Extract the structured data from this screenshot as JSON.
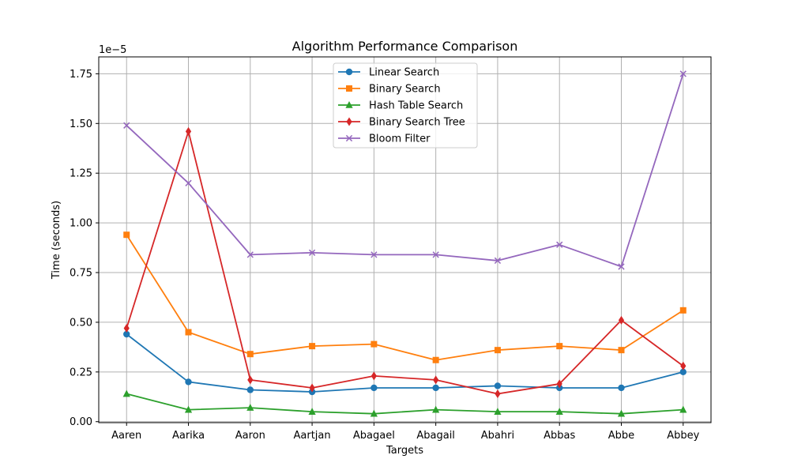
{
  "chart_data": {
    "type": "line",
    "title": "Algorithm Performance Comparison",
    "xlabel": "Targets",
    "ylabel": "Time (seconds)",
    "y_offset_text": "1e−5",
    "categories": [
      "Aaren",
      "Aarika",
      "Aaron",
      "Aartjan",
      "Abagael",
      "Abagail",
      "Abahri",
      "Abbas",
      "Abbe",
      "Abbey"
    ],
    "y_ticks": [
      "0.00",
      "0.25",
      "0.50",
      "0.75",
      "1.00",
      "1.25",
      "1.50",
      "1.75"
    ],
    "ylim": [
      -5e-08,
      1.835e-05
    ],
    "grid": true,
    "legend_position": "top-center",
    "series": [
      {
        "name": "Linear Search",
        "color": "#1f77b4",
        "marker": "circle",
        "values": [
          4.4e-06,
          2e-06,
          1.6e-06,
          1.5e-06,
          1.7e-06,
          1.7e-06,
          1.8e-06,
          1.7e-06,
          1.7e-06,
          2.5e-06
        ]
      },
      {
        "name": "Binary Search",
        "color": "#ff7f0e",
        "marker": "square",
        "values": [
          9.4e-06,
          4.5e-06,
          3.4e-06,
          3.8e-06,
          3.9e-06,
          3.1e-06,
          3.6e-06,
          3.8e-06,
          3.6e-06,
          5.6e-06
        ]
      },
      {
        "name": "Hash Table Search",
        "color": "#2ca02c",
        "marker": "triangle",
        "values": [
          1.4e-06,
          6e-07,
          7e-07,
          5e-07,
          4e-07,
          6e-07,
          5e-07,
          5e-07,
          4e-07,
          6e-07
        ]
      },
      {
        "name": "Binary Search Tree",
        "color": "#d62728",
        "marker": "diamond",
        "values": [
          4.7e-06,
          1.46e-05,
          2.1e-06,
          1.7e-06,
          2.3e-06,
          2.1e-06,
          1.4e-06,
          1.9e-06,
          5.1e-06,
          2.8e-06
        ]
      },
      {
        "name": "Bloom Filter",
        "color": "#9467bd",
        "marker": "x",
        "values": [
          1.49e-05,
          1.2e-05,
          8.4e-06,
          8.5e-06,
          8.4e-06,
          8.4e-06,
          8.1e-06,
          8.9e-06,
          7.8e-06,
          1.75e-05
        ]
      }
    ]
  }
}
